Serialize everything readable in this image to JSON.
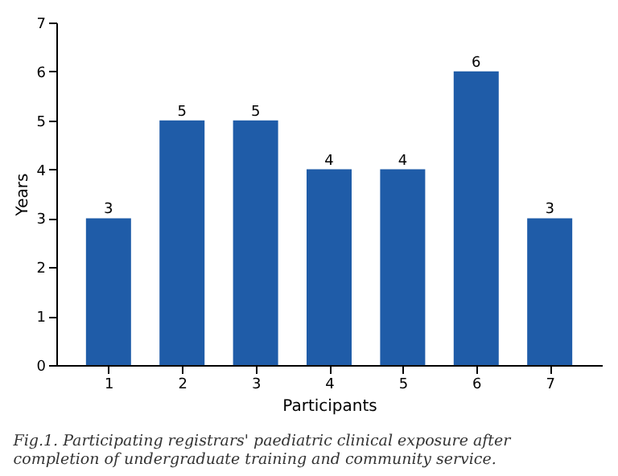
{
  "chart_data": {
    "type": "bar",
    "categories": [
      "1",
      "2",
      "3",
      "4",
      "5",
      "6",
      "7"
    ],
    "values": [
      3,
      5,
      5,
      4,
      4,
      6,
      3
    ],
    "color": "#1f5ca8",
    "xlabel": "Participants",
    "ylabel": "Years",
    "ylim": [
      0,
      7
    ],
    "yticks": [
      0,
      1,
      2,
      3,
      4,
      5,
      6,
      7
    ],
    "data_labels": true,
    "grid": false,
    "annotations": [
      "Fig.1. Participating registrars' paediatric clinical exposure after completion of undergraduate training and community service."
    ]
  }
}
